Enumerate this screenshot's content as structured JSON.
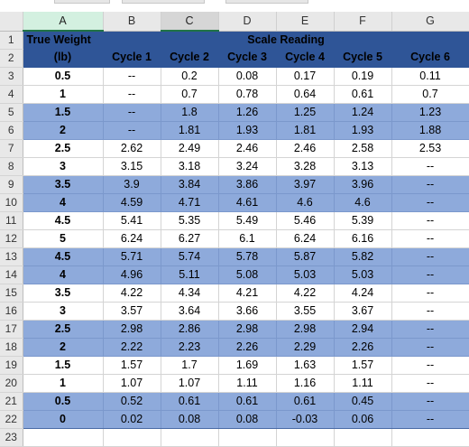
{
  "column_headers": [
    "A",
    "B",
    "C",
    "D",
    "E",
    "F",
    "G"
  ],
  "header_row1": {
    "true_weight": "True Weight",
    "scale_reading": "Scale Reading"
  },
  "header_row2": {
    "unit": "(lb)",
    "cycles": [
      "Cycle 1",
      "Cycle 2",
      "Cycle 3",
      "Cycle 4",
      "Cycle 5",
      "Cycle 6"
    ]
  },
  "rows": [
    {
      "num": "3",
      "band": "white",
      "w": "0.5",
      "c": [
        "--",
        "0.2",
        "0.08",
        "0.17",
        "0.19",
        "0.11"
      ]
    },
    {
      "num": "4",
      "band": "white",
      "w": "1",
      "c": [
        "--",
        "0.7",
        "0.78",
        "0.64",
        "0.61",
        "0.7"
      ]
    },
    {
      "num": "5",
      "band": "blue",
      "w": "1.5",
      "c": [
        "--",
        "1.8",
        "1.26",
        "1.25",
        "1.24",
        "1.23"
      ]
    },
    {
      "num": "6",
      "band": "blue",
      "w": "2",
      "c": [
        "--",
        "1.81",
        "1.93",
        "1.81",
        "1.93",
        "1.88"
      ]
    },
    {
      "num": "7",
      "band": "white",
      "w": "2.5",
      "c": [
        "2.62",
        "2.49",
        "2.46",
        "2.46",
        "2.58",
        "2.53"
      ]
    },
    {
      "num": "8",
      "band": "white",
      "w": "3",
      "c": [
        "3.15",
        "3.18",
        "3.24",
        "3.28",
        "3.13",
        "--"
      ]
    },
    {
      "num": "9",
      "band": "blue",
      "w": "3.5",
      "c": [
        "3.9",
        "3.84",
        "3.86",
        "3.97",
        "3.96",
        "--"
      ]
    },
    {
      "num": "10",
      "band": "blue",
      "w": "4",
      "c": [
        "4.59",
        "4.71",
        "4.61",
        "4.6",
        "4.6",
        "--"
      ]
    },
    {
      "num": "11",
      "band": "white",
      "w": "4.5",
      "c": [
        "5.41",
        "5.35",
        "5.49",
        "5.46",
        "5.39",
        "--"
      ]
    },
    {
      "num": "12",
      "band": "white",
      "w": "5",
      "c": [
        "6.24",
        "6.27",
        "6.1",
        "6.24",
        "6.16",
        "--"
      ]
    },
    {
      "num": "13",
      "band": "blue",
      "w": "4.5",
      "c": [
        "5.71",
        "5.74",
        "5.78",
        "5.87",
        "5.82",
        "--"
      ]
    },
    {
      "num": "14",
      "band": "blue",
      "w": "4",
      "c": [
        "4.96",
        "5.11",
        "5.08",
        "5.03",
        "5.03",
        "--"
      ]
    },
    {
      "num": "15",
      "band": "white",
      "w": "3.5",
      "c": [
        "4.22",
        "4.34",
        "4.21",
        "4.22",
        "4.24",
        "--"
      ]
    },
    {
      "num": "16",
      "band": "white",
      "w": "3",
      "c": [
        "3.57",
        "3.64",
        "3.66",
        "3.55",
        "3.67",
        "--"
      ]
    },
    {
      "num": "17",
      "band": "blue",
      "w": "2.5",
      "c": [
        "2.98",
        "2.86",
        "2.98",
        "2.98",
        "2.94",
        "--"
      ]
    },
    {
      "num": "18",
      "band": "blue",
      "w": "2",
      "c": [
        "2.22",
        "2.23",
        "2.26",
        "2.29",
        "2.26",
        "--"
      ]
    },
    {
      "num": "19",
      "band": "white",
      "w": "1.5",
      "c": [
        "1.57",
        "1.7",
        "1.69",
        "1.63",
        "1.57",
        "--"
      ]
    },
    {
      "num": "20",
      "band": "white",
      "w": "1",
      "c": [
        "1.07",
        "1.07",
        "1.11",
        "1.16",
        "1.11",
        "--"
      ]
    },
    {
      "num": "21",
      "band": "blue",
      "w": "0.5",
      "c": [
        "0.52",
        "0.61",
        "0.61",
        "0.61",
        "0.45",
        "--"
      ]
    },
    {
      "num": "22",
      "band": "blue",
      "w": "0",
      "c": [
        "0.02",
        "0.08",
        "0.08",
        "-0.03",
        "0.06",
        "--"
      ]
    }
  ],
  "header_row_numbers": [
    "1",
    "2"
  ],
  "empty_row_number": "23",
  "colors": {
    "header_fill": "#2f5597",
    "band_fill": "#8eaadb",
    "selected_col_border": "#217346"
  }
}
